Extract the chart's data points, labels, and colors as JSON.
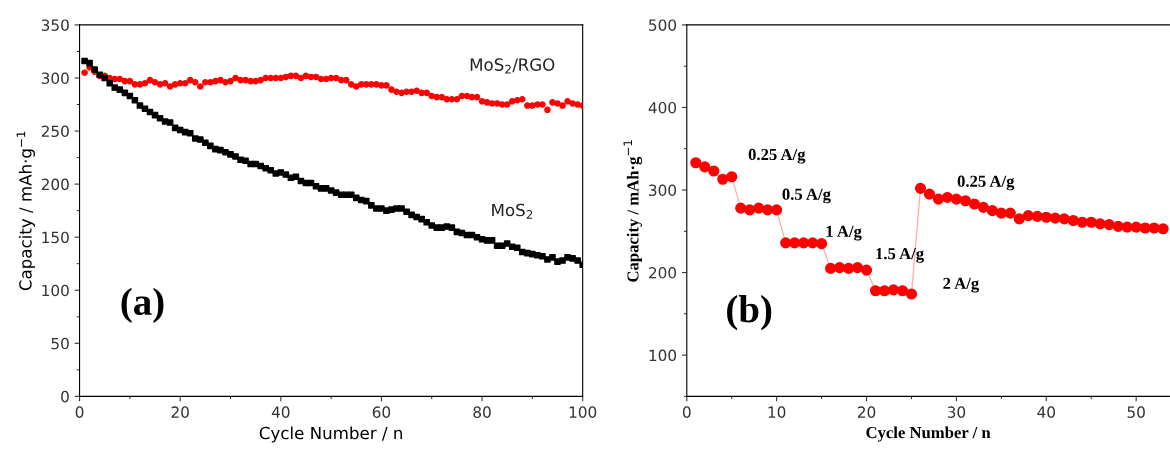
{
  "chart_data": [
    {
      "type": "scatter",
      "xlabel": "Cycle Number / n",
      "ylabel": "Capacity / mAh·g$^{−1}$",
      "xlim": [
        0,
        100
      ],
      "ylim": [
        0,
        350
      ],
      "xticks": [
        0,
        20,
        40,
        60,
        80,
        100
      ],
      "yticks": [
        0,
        50,
        100,
        150,
        200,
        250,
        300,
        350
      ],
      "grid": false,
      "legend": false,
      "x": [
        1,
        2,
        3,
        4,
        5,
        6,
        7,
        8,
        9,
        10,
        11,
        12,
        13,
        14,
        15,
        16,
        17,
        18,
        19,
        20,
        21,
        22,
        23,
        24,
        25,
        26,
        27,
        28,
        29,
        30,
        31,
        32,
        33,
        34,
        35,
        36,
        37,
        38,
        39,
        40,
        41,
        42,
        43,
        44,
        45,
        46,
        47,
        48,
        49,
        50,
        51,
        52,
        53,
        54,
        55,
        56,
        57,
        58,
        59,
        60,
        61,
        62,
        63,
        64,
        65,
        66,
        67,
        68,
        69,
        70,
        71,
        72,
        73,
        74,
        75,
        76,
        77,
        78,
        79,
        80,
        81,
        82,
        83,
        84,
        85,
        86,
        87,
        88,
        89,
        90,
        91,
        92,
        93,
        94,
        95,
        96,
        97,
        98,
        99,
        100
      ],
      "annotations": [
        "(a)"
      ],
      "series": [
        {
          "name": "MoS$_{2}$/RGO",
          "color": "#ff0000",
          "marker": "circle",
          "values": [
            305,
            310,
            306,
            302,
            302,
            300,
            299,
            299,
            297,
            297,
            294,
            294,
            295,
            298,
            296,
            294,
            295,
            292,
            294,
            295,
            295,
            298,
            296,
            292,
            296,
            296,
            297,
            298,
            296,
            297,
            300,
            298,
            298,
            297,
            297,
            298,
            300,
            300,
            300,
            300,
            301,
            302,
            302,
            300,
            302,
            301,
            301,
            299,
            299,
            300,
            300,
            298,
            298,
            294,
            292,
            294,
            294,
            294,
            294,
            293,
            293,
            289,
            287,
            286,
            287,
            287,
            288,
            286,
            286,
            283,
            282,
            282,
            280,
            280,
            280,
            283,
            283,
            282,
            282,
            278,
            277,
            276,
            276,
            275,
            275,
            278,
            279,
            280,
            274,
            274,
            275,
            275,
            270,
            277,
            276,
            274,
            278,
            276,
            275,
            274
          ]
        },
        {
          "name": "MoS$_{2}$",
          "color": "#000000",
          "marker": "square",
          "values": [
            316,
            314,
            308,
            303,
            300,
            295,
            291,
            289,
            286,
            283,
            279,
            274,
            271,
            268,
            265,
            262,
            259,
            258,
            253,
            251,
            249,
            248,
            243,
            242,
            239,
            236,
            233,
            232,
            230,
            228,
            226,
            223,
            222,
            219,
            219,
            217,
            215,
            213,
            210,
            211,
            209,
            206,
            207,
            203,
            201,
            201,
            198,
            196,
            196,
            194,
            192,
            190,
            190,
            190,
            187,
            185,
            184,
            180,
            177,
            177,
            175,
            176,
            177,
            177,
            174,
            171,
            169,
            167,
            164,
            161,
            159,
            159,
            160,
            159,
            155,
            154,
            152,
            152,
            150,
            148,
            147,
            147,
            142,
            142,
            144,
            141,
            140,
            136,
            135,
            134,
            133,
            132,
            129,
            131,
            127,
            128,
            131,
            130,
            128,
            124
          ]
        }
      ]
    },
    {
      "type": "line",
      "xlabel": "Cycle Number / n",
      "ylabel": "Capacity / mAh·g$^{−1}$",
      "xlim": [
        0,
        53.7
      ],
      "ylim": [
        50,
        500
      ],
      "xticks": [
        0,
        10,
        20,
        30,
        40,
        50
      ],
      "yticks": [
        100,
        200,
        300,
        400,
        500
      ],
      "grid": false,
      "legend": false,
      "marker": "circle",
      "line_style": "solid",
      "x": [
        1,
        2,
        3,
        4,
        5,
        6,
        7,
        8,
        9,
        10,
        11,
        12,
        13,
        14,
        15,
        16,
        17,
        18,
        19,
        20,
        21,
        22,
        23,
        24,
        25,
        26,
        27,
        28,
        29,
        30,
        31,
        32,
        33,
        34,
        35,
        36,
        37,
        38,
        39,
        40,
        41,
        42,
        43,
        44,
        45,
        46,
        47,
        48,
        49,
        50,
        51,
        52,
        53
      ],
      "values": [
        333,
        328,
        323,
        313,
        316,
        278,
        276,
        278,
        276,
        276,
        236,
        236,
        236,
        236,
        235,
        205,
        206,
        205,
        206,
        203,
        178,
        178,
        179,
        178,
        174,
        302,
        295,
        289,
        291,
        289,
        287,
        283,
        279,
        275,
        272,
        272,
        265,
        269,
        268,
        267,
        266,
        265,
        263,
        261,
        261,
        259,
        258,
        256,
        255,
        255,
        254,
        254,
        253
      ],
      "color": "#ff0000",
      "annotations": [
        "(b)",
        "0.25 A/g",
        "0.5 A/g",
        "1 A/g",
        "1.5 A/g",
        "2 A/g",
        "0.25 A/g"
      ]
    }
  ]
}
